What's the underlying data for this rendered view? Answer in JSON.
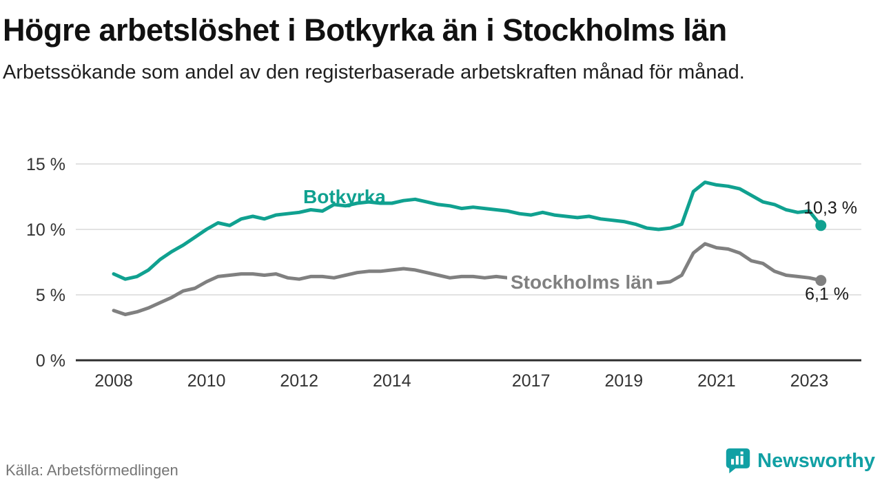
{
  "header": {
    "title": "Högre arbetslöshet i Botkyrka än i Stockholms län",
    "subtitle": "Arbetssökande som andel av den registerbaserade arbetskraften månad för månad."
  },
  "footer": {
    "source": "Källa: Arbetsförmedlingen",
    "brand": "Newsworthy"
  },
  "colors": {
    "botkyrka": "#10A190",
    "stockholm": "#808080",
    "grid": "#d8d8d8",
    "axis": "#2e2e2e",
    "tick_text": "#333333",
    "brand_teal": "#11A0A4"
  },
  "chart_data": {
    "type": "line",
    "title": "Högre arbetslöshet i Botkyrka än i Stockholms län",
    "subtitle": "Arbetssökande som andel av den registerbaserade arbetskraften månad för månad.",
    "unit": "%",
    "xlim": [
      2007.2,
      2024.1
    ],
    "ylim": [
      0,
      15.5
    ],
    "grid": true,
    "xticks": [
      2008,
      2010,
      2012,
      2014,
      2017,
      2019,
      2021,
      2023
    ],
    "yticks": [
      {
        "value": 0,
        "label": "0 %"
      },
      {
        "value": 5,
        "label": "5 %"
      },
      {
        "value": 10,
        "label": "10 %"
      },
      {
        "value": 15,
        "label": "15 %"
      }
    ],
    "x": [
      2008.0,
      2008.25,
      2008.5,
      2008.75,
      2009.0,
      2009.25,
      2009.5,
      2009.75,
      2010.0,
      2010.25,
      2010.5,
      2010.75,
      2011.0,
      2011.25,
      2011.5,
      2011.75,
      2012.0,
      2012.25,
      2012.5,
      2012.75,
      2013.0,
      2013.25,
      2013.5,
      2013.75,
      2014.0,
      2014.25,
      2014.5,
      2014.75,
      2015.0,
      2015.25,
      2015.5,
      2015.75,
      2016.0,
      2016.25,
      2016.5,
      2016.75,
      2017.0,
      2017.25,
      2017.5,
      2017.75,
      2018.0,
      2018.25,
      2018.5,
      2018.75,
      2019.0,
      2019.25,
      2019.5,
      2019.75,
      2020.0,
      2020.25,
      2020.5,
      2020.75,
      2021.0,
      2021.25,
      2021.5,
      2021.75,
      2022.0,
      2022.25,
      2022.5,
      2022.75,
      2023.0,
      2023.25
    ],
    "series": [
      {
        "name": "Botkyrka",
        "color_key": "botkyrka",
        "end_label": "10,3 %",
        "end_value": 10.3,
        "values": [
          6.6,
          6.2,
          6.4,
          6.9,
          7.7,
          8.3,
          8.8,
          9.4,
          10.0,
          10.5,
          10.3,
          10.8,
          11.0,
          10.8,
          11.1,
          11.2,
          11.3,
          11.5,
          11.4,
          11.9,
          11.8,
          12.0,
          12.1,
          12.0,
          12.0,
          12.2,
          12.3,
          12.1,
          11.9,
          11.8,
          11.6,
          11.7,
          11.6,
          11.5,
          11.4,
          11.2,
          11.1,
          11.3,
          11.1,
          11.0,
          10.9,
          11.0,
          10.8,
          10.7,
          10.6,
          10.4,
          10.1,
          10.0,
          10.1,
          10.4,
          12.9,
          13.6,
          13.4,
          13.3,
          13.1,
          12.6,
          12.1,
          11.9,
          11.5,
          11.3,
          11.4,
          10.3
        ]
      },
      {
        "name": "Stockholms län",
        "color_key": "stockholm",
        "end_label": "6,1 %",
        "end_value": 6.1,
        "values": [
          3.8,
          3.5,
          3.7,
          4.0,
          4.4,
          4.8,
          5.3,
          5.5,
          6.0,
          6.4,
          6.5,
          6.6,
          6.6,
          6.5,
          6.6,
          6.3,
          6.2,
          6.4,
          6.4,
          6.3,
          6.5,
          6.7,
          6.8,
          6.8,
          6.9,
          7.0,
          6.9,
          6.7,
          6.5,
          6.3,
          6.4,
          6.4,
          6.3,
          6.4,
          6.3,
          6.2,
          6.2,
          6.3,
          6.2,
          6.1,
          6.2,
          6.3,
          6.2,
          6.1,
          6.0,
          6.1,
          6.0,
          5.9,
          6.0,
          6.5,
          8.2,
          8.9,
          8.6,
          8.5,
          8.2,
          7.6,
          7.4,
          6.8,
          6.5,
          6.4,
          6.3,
          6.1
        ]
      }
    ],
    "legend_position": "inline-labels"
  }
}
